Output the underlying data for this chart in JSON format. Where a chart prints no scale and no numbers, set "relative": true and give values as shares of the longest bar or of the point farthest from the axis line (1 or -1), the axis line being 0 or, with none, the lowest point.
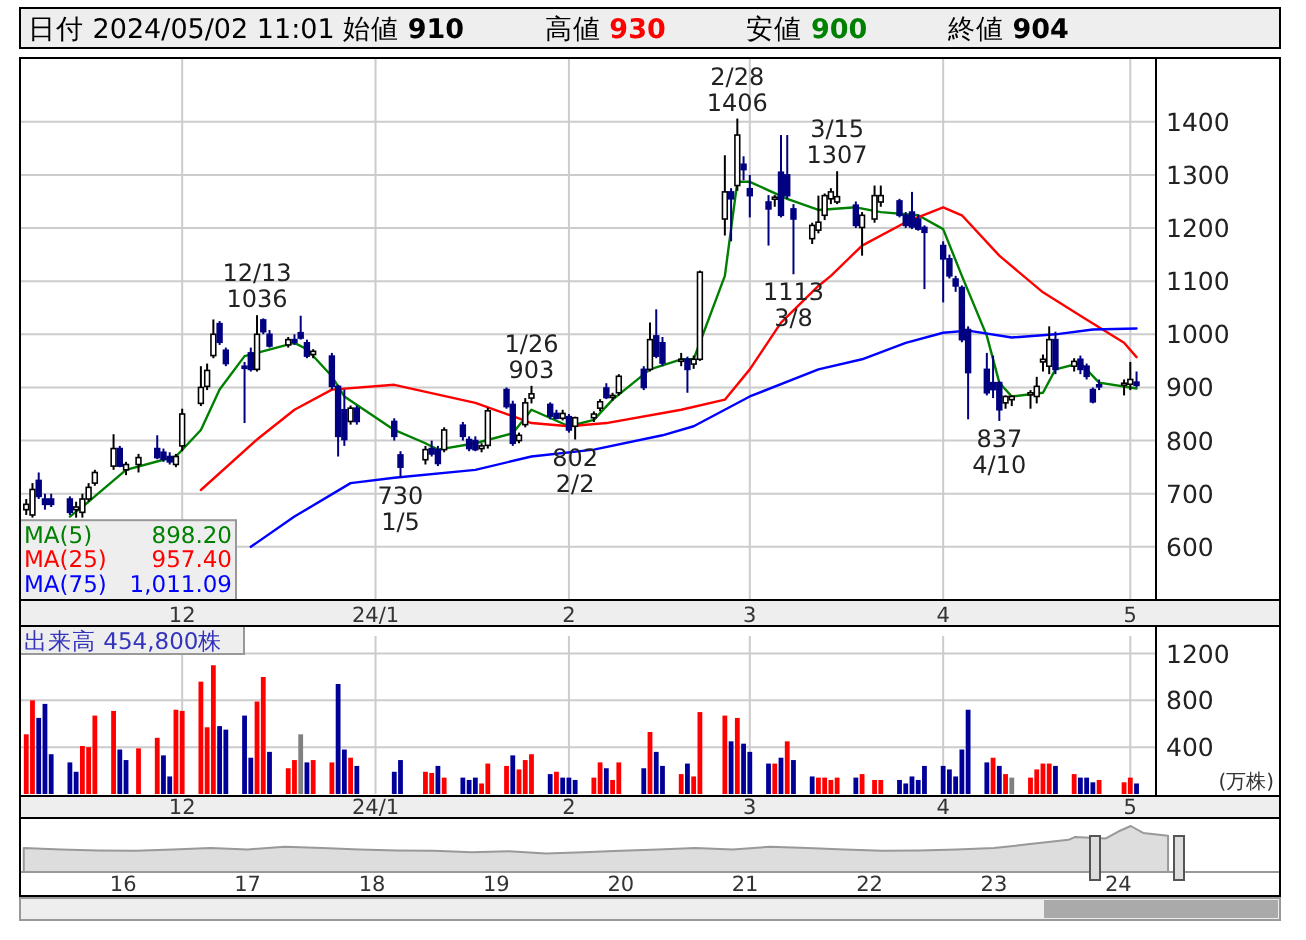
{
  "chart_data": [
    {
      "type": "candlestick",
      "title": "日付 2024/05/02 11:01 始値 **910** 高値 **930** 安値 **900** 終値 **904**",
      "x": [
        "2023-11-06",
        "2023-11-07",
        "2023-11-08",
        "2023-11-09",
        "2023-11-10",
        "2023-11-13",
        "2023-11-14",
        "2023-11-15",
        "2023-11-16",
        "2023-11-17",
        "2023-11-20",
        "2023-11-21",
        "2023-11-22",
        "2023-11-24",
        "2023-11-27",
        "2023-11-28",
        "2023-11-29",
        "2023-11-30",
        "2023-12-01",
        "2023-12-04",
        "2023-12-05",
        "2023-12-06",
        "2023-12-07",
        "2023-12-08",
        "2023-12-11",
        "2023-12-12",
        "2023-12-13",
        "2023-12-14",
        "2023-12-15",
        "2023-12-18",
        "2023-12-19",
        "2023-12-20",
        "2023-12-21",
        "2023-12-22",
        "2023-12-25",
        "2023-12-26",
        "2023-12-27",
        "2023-12-28",
        "2023-12-29",
        "2024-01-04",
        "2024-01-05",
        "2024-01-09",
        "2024-01-10",
        "2024-01-11",
        "2024-01-12",
        "2024-01-15",
        "2024-01-16",
        "2024-01-17",
        "2024-01-18",
        "2024-01-19",
        "2024-01-22",
        "2024-01-23",
        "2024-01-24",
        "2024-01-25",
        "2024-01-26",
        "2024-01-29",
        "2024-01-30",
        "2024-01-31",
        "2024-02-01",
        "2024-02-02",
        "2024-02-05",
        "2024-02-06",
        "2024-02-07",
        "2024-02-08",
        "2024-02-09",
        "2024-02-13",
        "2024-02-14",
        "2024-02-15",
        "2024-02-16",
        "2024-02-19",
        "2024-02-20",
        "2024-02-21",
        "2024-02-22",
        "2024-02-26",
        "2024-02-27",
        "2024-02-28",
        "2024-02-29",
        "2024-03-01",
        "2024-03-04",
        "2024-03-05",
        "2024-03-06",
        "2024-03-07",
        "2024-03-08",
        "2024-03-11",
        "2024-03-12",
        "2024-03-13",
        "2024-03-14",
        "2024-03-15",
        "2024-03-18",
        "2024-03-19",
        "2024-03-21",
        "2024-03-22",
        "2024-03-25",
        "2024-03-26",
        "2024-03-27",
        "2024-03-28",
        "2024-03-29",
        "2024-04-01",
        "2024-04-02",
        "2024-04-03",
        "2024-04-04",
        "2024-04-05",
        "2024-04-08",
        "2024-04-09",
        "2024-04-10",
        "2024-04-11",
        "2024-04-12",
        "2024-04-15",
        "2024-04-16",
        "2024-04-17",
        "2024-04-18",
        "2024-04-19",
        "2024-04-22",
        "2024-04-23",
        "2024-04-24",
        "2024-04-25",
        "2024-04-26",
        "2024-04-30",
        "2024-05-01",
        "2024-05-02"
      ],
      "ohlc": [
        [
          670,
          690,
          660,
          680
        ],
        [
          660,
          720,
          655,
          708
        ],
        [
          725,
          740,
          690,
          695
        ],
        [
          690,
          700,
          670,
          680
        ],
        [
          690,
          700,
          675,
          680
        ],
        [
          690,
          695,
          660,
          665
        ],
        [
          670,
          685,
          655,
          675
        ],
        [
          665,
          700,
          655,
          690
        ],
        [
          690,
          720,
          685,
          712
        ],
        [
          720,
          745,
          715,
          740
        ],
        [
          752,
          812,
          745,
          785
        ],
        [
          785,
          790,
          750,
          752
        ],
        [
          745,
          760,
          735,
          755
        ],
        [
          755,
          775,
          740,
          768
        ],
        [
          785,
          810,
          765,
          768
        ],
        [
          778,
          785,
          760,
          765
        ],
        [
          770,
          778,
          755,
          760
        ],
        [
          755,
          775,
          750,
          770
        ],
        [
          790,
          860,
          780,
          850
        ],
        [
          870,
          940,
          865,
          900
        ],
        [
          902,
          945,
          895,
          932
        ],
        [
          960,
          1028,
          955,
          1000
        ],
        [
          1020,
          1025,
          980,
          985
        ],
        [
          970,
          975,
          940,
          945
        ],
        [
          940,
          948,
          833,
          936
        ],
        [
          965,
          975,
          930,
          934
        ],
        [
          934,
          1036,
          930,
          1000
        ],
        [
          1027,
          1030,
          1000,
          1005
        ],
        [
          1000,
          1008,
          975,
          978
        ],
        [
          980,
          995,
          975,
          990
        ],
        [
          990,
          1000,
          980,
          985
        ],
        [
          1003,
          1035,
          990,
          993
        ],
        [
          984,
          990,
          955,
          959
        ],
        [
          962,
          972,
          955,
          968
        ],
        [
          959,
          965,
          896,
          902
        ],
        [
          902,
          905,
          770,
          808
        ],
        [
          858,
          896,
          790,
          802
        ],
        [
          836,
          866,
          830,
          861
        ],
        [
          861,
          866,
          830,
          836
        ],
        [
          836,
          842,
          800,
          808
        ],
        [
          773,
          780,
          730,
          750
        ],
        [
          764,
          790,
          755,
          783
        ],
        [
          785,
          800,
          770,
          775
        ],
        [
          783,
          790,
          752,
          757
        ],
        [
          783,
          825,
          778,
          820
        ],
        [
          829,
          835,
          800,
          808
        ],
        [
          802,
          808,
          780,
          785
        ],
        [
          800,
          808,
          780,
          783
        ],
        [
          785,
          795,
          778,
          790
        ],
        [
          791,
          862,
          785,
          856
        ],
        [
          896,
          900,
          860,
          864
        ],
        [
          868,
          875,
          790,
          795
        ],
        [
          800,
          815,
          795,
          810
        ],
        [
          830,
          880,
          825,
          871
        ],
        [
          880,
          903,
          870,
          888
        ],
        [
          868,
          872,
          840,
          846
        ],
        [
          851,
          858,
          840,
          842
        ],
        [
          842,
          858,
          838,
          851
        ],
        [
          845,
          850,
          815,
          820
        ],
        [
          827,
          845,
          802,
          843
        ],
        [
          843,
          855,
          835,
          850
        ],
        [
          861,
          878,
          855,
          873
        ],
        [
          899,
          908,
          878,
          881
        ],
        [
          883,
          890,
          875,
          885
        ],
        [
          890,
          925,
          885,
          921
        ],
        [
          934,
          940,
          895,
          900
        ],
        [
          934,
          1022,
          930,
          990
        ],
        [
          997,
          1047,
          955,
          959
        ],
        [
          984,
          995,
          940,
          946
        ],
        [
          950,
          965,
          940,
          953
        ],
        [
          953,
          958,
          890,
          934
        ],
        [
          944,
          960,
          935,
          953
        ],
        [
          953,
          1120,
          950,
          1117
        ],
        [
          1217,
          1337,
          1186,
          1268
        ],
        [
          1268,
          1275,
          1175,
          1255
        ],
        [
          1280,
          1406,
          1270,
          1375
        ],
        [
          1320,
          1335,
          1290,
          1310
        ],
        [
          1274,
          1300,
          1220,
          1261
        ],
        [
          1249,
          1262,
          1167,
          1236
        ],
        [
          1255,
          1262,
          1240,
          1258
        ],
        [
          1305,
          1375,
          1220,
          1224
        ],
        [
          1300,
          1375,
          1255,
          1261
        ],
        [
          1236,
          1245,
          1113,
          1217
        ],
        [
          1180,
          1210,
          1170,
          1205
        ],
        [
          1196,
          1261,
          1190,
          1211
        ],
        [
          1224,
          1265,
          1215,
          1261
        ],
        [
          1255,
          1275,
          1245,
          1268
        ],
        [
          1249,
          1307,
          1245,
          1259
        ],
        [
          1243,
          1250,
          1200,
          1205
        ],
        [
          1201,
          1230,
          1148,
          1224
        ],
        [
          1217,
          1280,
          1210,
          1261
        ],
        [
          1249,
          1280,
          1240,
          1261
        ],
        [
          1251,
          1255,
          1220,
          1224
        ],
        [
          1224,
          1230,
          1200,
          1205
        ],
        [
          1230,
          1268,
          1198,
          1202
        ],
        [
          1217,
          1225,
          1195,
          1198
        ],
        [
          1201,
          1205,
          1085,
          1192
        ],
        [
          1167,
          1175,
          1060,
          1142
        ],
        [
          1142,
          1150,
          1105,
          1110
        ],
        [
          1104,
          1110,
          1080,
          1091
        ],
        [
          1088,
          1092,
          985,
          990
        ],
        [
          1009,
          1015,
          840,
          928
        ],
        [
          934,
          965,
          885,
          890
        ],
        [
          909,
          960,
          880,
          896
        ],
        [
          909,
          912,
          837,
          858
        ],
        [
          871,
          885,
          860,
          883
        ],
        [
          877,
          885,
          865,
          883
        ],
        [
          886,
          895,
          860,
          890
        ],
        [
          883,
          920,
          870,
          902
        ],
        [
          948,
          962,
          930,
          953
        ],
        [
          940,
          1015,
          925,
          990
        ],
        [
          990,
          1005,
          925,
          934
        ],
        [
          940,
          955,
          930,
          949
        ],
        [
          953,
          960,
          925,
          934
        ],
        [
          940,
          945,
          915,
          921
        ],
        [
          896,
          900,
          870,
          873
        ],
        [
          905,
          915,
          895,
          902
        ],
        [
          905,
          915,
          885,
          908
        ],
        [
          906,
          948,
          895,
          915
        ],
        [
          910,
          930,
          900,
          904
        ]
      ],
      "series": [
        {
          "name": "MA(5)",
          "type": "line",
          "color": "#008000",
          "x": [
            "2023-11-13",
            "2023-11-16",
            "2023-11-22",
            "2023-11-28",
            "2023-11-30",
            "2023-12-04",
            "2023-12-07",
            "2023-12-11",
            "2023-12-13",
            "2023-12-19",
            "2023-12-21",
            "2023-12-25",
            "2023-12-27",
            "2024-01-04",
            "2024-01-09",
            "2024-01-11",
            "2024-01-17",
            "2024-01-23",
            "2024-01-26",
            "2024-02-01",
            "2024-02-05",
            "2024-02-08",
            "2024-02-14",
            "2024-02-19",
            "2024-02-21",
            "2024-02-26",
            "2024-02-28",
            "2024-03-01",
            "2024-03-07",
            "2024-03-12",
            "2024-03-18",
            "2024-03-22",
            "2024-03-28",
            "2024-04-01",
            "2024-04-04",
            "2024-04-08",
            "2024-04-10",
            "2024-04-12",
            "2024-04-17",
            "2024-04-19",
            "2024-04-23",
            "2024-04-26",
            "2024-05-02"
          ],
          "values": [
            657,
            685,
            745,
            764,
            770,
            820,
            896,
            959,
            965,
            984,
            972,
            921,
            883,
            820,
            795,
            783,
            795,
            814,
            858,
            827,
            839,
            877,
            934,
            953,
            953,
            1110,
            1287,
            1287,
            1255,
            1234,
            1239,
            1230,
            1224,
            1198,
            1110,
            997,
            909,
            883,
            890,
            934,
            946,
            909,
            898
          ]
        },
        {
          "name": "MA(25)",
          "type": "line",
          "color": "#ff0000",
          "x": [
            "2023-12-04",
            "2023-12-13",
            "2023-12-19",
            "2023-12-25",
            "2024-01-04",
            "2024-01-17",
            "2024-01-23",
            "2024-01-26",
            "2024-02-01",
            "2024-02-07",
            "2024-02-19",
            "2024-02-26",
            "2024-03-01",
            "2024-03-06",
            "2024-03-12",
            "2024-03-14",
            "2024-03-19",
            "2024-03-26",
            "2024-04-01",
            "2024-04-04",
            "2024-04-10",
            "2024-04-17",
            "2024-04-23",
            "2024-04-30",
            "2024-05-02"
          ],
          "values": [
            707,
            802,
            858,
            896,
            905,
            871,
            846,
            833,
            827,
            833,
            858,
            877,
            934,
            1022,
            1091,
            1110,
            1167,
            1211,
            1239,
            1224,
            1148,
            1079,
            1035,
            984,
            957
          ]
        },
        {
          "name": "MA(75)",
          "type": "line",
          "color": "#0000ff",
          "x": [
            "2023-12-12",
            "2023-12-19",
            "2023-12-28",
            "2024-01-04",
            "2024-01-17",
            "2024-01-26",
            "2024-02-05",
            "2024-02-16",
            "2024-02-21",
            "2024-03-01",
            "2024-03-12",
            "2024-03-19",
            "2024-03-26",
            "2024-04-01",
            "2024-04-05",
            "2024-04-12",
            "2024-04-19",
            "2024-04-25",
            "2024-05-02"
          ],
          "values": [
            600,
            657,
            720,
            730,
            745,
            770,
            783,
            810,
            827,
            883,
            934,
            953,
            984,
            1003,
            1007,
            994,
            1000,
            1009,
            1011
          ]
        }
      ],
      "ylim": [
        500,
        1520
      ],
      "xlim": [
        "2023-11-05",
        "2024-05-25"
      ],
      "yticks": [
        600,
        700,
        800,
        900,
        1000,
        1100,
        1200,
        1300,
        1400
      ],
      "xticks": [
        {
          "value": "2023-12-01",
          "label": "12"
        },
        {
          "value": "2024-01-01",
          "label": "24/1"
        },
        {
          "value": "2024-02-01",
          "label": "2"
        },
        {
          "value": "2024-03-01",
          "label": "3"
        },
        {
          "value": "2024-04-01",
          "label": "4"
        },
        {
          "value": "2024-05-01",
          "label": "5"
        }
      ],
      "grid": true,
      "legend": "bottom left",
      "annotations": [
        {
          "text": "12/13 1036",
          "x": "2023-12-13",
          "y": 1036
        },
        {
          "text": "730 1/5",
          "x": "2024-01-05",
          "y": 730
        },
        {
          "text": "1/26 903",
          "x": "2024-01-26",
          "y": 903
        },
        {
          "text": "802 2/2",
          "x": "2024-02-02",
          "y": 802
        },
        {
          "text": "2/28 1406",
          "x": "2024-02-28",
          "y": 1406
        },
        {
          "text": "1113 3/8",
          "x": "2024-03-08",
          "y": 1113
        },
        {
          "text": "3/15 1307",
          "x": "2024-03-15",
          "y": 1307
        },
        {
          "text": "837 4/10",
          "x": "2024-04-10",
          "y": 837
        },
        "898.20",
        "957.40",
        "1,011.09"
      ]
    },
    {
      "type": "bar",
      "title": "出来高 454,800株",
      "ylabel": "(万株)",
      "x": [
        "2023-11-06",
        "2023-11-07",
        "2023-11-08",
        "2023-11-09",
        "2023-11-10",
        "2023-11-13",
        "2023-11-14",
        "2023-11-15",
        "2023-11-16",
        "2023-11-17",
        "2023-11-20",
        "2023-11-21",
        "2023-11-22",
        "2023-11-24",
        "2023-11-27",
        "2023-11-28",
        "2023-11-29",
        "2023-11-30",
        "2023-12-01",
        "2023-12-04",
        "2023-12-05",
        "2023-12-06",
        "2023-12-07",
        "2023-12-08",
        "2023-12-11",
        "2023-12-12",
        "2023-12-13",
        "2023-12-14",
        "2023-12-15",
        "2023-12-18",
        "2023-12-19",
        "2023-12-20",
        "2023-12-21",
        "2023-12-22",
        "2023-12-25",
        "2023-12-26",
        "2023-12-27",
        "2023-12-28",
        "2023-12-29",
        "2024-01-04",
        "2024-01-05",
        "2024-01-09",
        "2024-01-10",
        "2024-01-11",
        "2024-01-12",
        "2024-01-15",
        "2024-01-16",
        "2024-01-17",
        "2024-01-18",
        "2024-01-19",
        "2024-01-22",
        "2024-01-23",
        "2024-01-24",
        "2024-01-25",
        "2024-01-26",
        "2024-01-29",
        "2024-01-30",
        "2024-01-31",
        "2024-02-01",
        "2024-02-02",
        "2024-02-05",
        "2024-02-06",
        "2024-02-07",
        "2024-02-08",
        "2024-02-09",
        "2024-02-13",
        "2024-02-14",
        "2024-02-15",
        "2024-02-16",
        "2024-02-19",
        "2024-02-20",
        "2024-02-21",
        "2024-02-22",
        "2024-02-26",
        "2024-02-27",
        "2024-02-28",
        "2024-02-29",
        "2024-03-01",
        "2024-03-04",
        "2024-03-05",
        "2024-03-06",
        "2024-03-07",
        "2024-03-08",
        "2024-03-11",
        "2024-03-12",
        "2024-03-13",
        "2024-03-14",
        "2024-03-15",
        "2024-03-18",
        "2024-03-19",
        "2024-03-21",
        "2024-03-22",
        "2024-03-25",
        "2024-03-26",
        "2024-03-27",
        "2024-03-28",
        "2024-03-29",
        "2024-04-01",
        "2024-04-02",
        "2024-04-03",
        "2024-04-04",
        "2024-04-05",
        "2024-04-08",
        "2024-04-09",
        "2024-04-10",
        "2024-04-11",
        "2024-04-12",
        "2024-04-15",
        "2024-04-16",
        "2024-04-17",
        "2024-04-18",
        "2024-04-19",
        "2024-04-22",
        "2024-04-23",
        "2024-04-24",
        "2024-04-25",
        "2024-04-26",
        "2024-04-30",
        "2024-05-01",
        "2024-05-02"
      ],
      "values": [
        510,
        800,
        650,
        770,
        340,
        270,
        190,
        410,
        400,
        670,
        710,
        380,
        290,
        390,
        480,
        330,
        150,
        720,
        710,
        960,
        570,
        1100,
        580,
        550,
        670,
        310,
        790,
        1000,
        360,
        220,
        290,
        510,
        270,
        290,
        270,
        940,
        380,
        310,
        240,
        190,
        290,
        190,
        180,
        240,
        140,
        140,
        120,
        140,
        90,
        260,
        240,
        330,
        210,
        290,
        340,
        170,
        190,
        140,
        140,
        120,
        140,
        270,
        220,
        120,
        270,
        220,
        530,
        360,
        240,
        170,
        260,
        150,
        700,
        670,
        450,
        650,
        430,
        360,
        260,
        260,
        310,
        450,
        290,
        150,
        140,
        140,
        120,
        140,
        140,
        170,
        120,
        120,
        120,
        90,
        150,
        120,
        240,
        240,
        210,
        150,
        380,
        720,
        270,
        310,
        240,
        170,
        140,
        140,
        210,
        260,
        260,
        240,
        170,
        140,
        140,
        100,
        120,
        100,
        140,
        90
      ],
      "colors": [
        "#ff0000",
        "#ff0000",
        "#000099",
        "#000099",
        "#000099",
        "#000099",
        "#000099",
        "#ff0000",
        "#ff0000",
        "#ff0000",
        "#ff0000",
        "#000099",
        "#000099",
        "#ff0000",
        "#ff0000",
        "#000099",
        "#000099",
        "#ff0000",
        "#ff0000",
        "#ff0000",
        "#ff0000",
        "#ff0000",
        "#000099",
        "#000099",
        "#000099",
        "#000099",
        "#ff0000",
        "#ff0000",
        "#000099",
        "#ff0000",
        "#ff0000",
        "#808080",
        "#000099",
        "#ff0000",
        "#ff0000",
        "#000099",
        "#000099",
        "#ff0000",
        "#000099",
        "#000099",
        "#000099",
        "#ff0000",
        "#ff0000",
        "#000099",
        "#ff0000",
        "#000099",
        "#000099",
        "#000099",
        "#ff0000",
        "#ff0000",
        "#ff0000",
        "#000099",
        "#ff0000",
        "#ff0000",
        "#ff0000",
        "#000099",
        "#ff0000",
        "#000099",
        "#000099",
        "#000099",
        "#ff0000",
        "#ff0000",
        "#000099",
        "#ff0000",
        "#ff0000",
        "#000099",
        "#ff0000",
        "#000099",
        "#000099",
        "#ff0000",
        "#000099",
        "#ff0000",
        "#ff0000",
        "#ff0000",
        "#000099",
        "#ff0000",
        "#000099",
        "#000099",
        "#000099",
        "#ff0000",
        "#000099",
        "#ff0000",
        "#000099",
        "#000099",
        "#ff0000",
        "#ff0000",
        "#ff0000",
        "#ff0000",
        "#000099",
        "#ff0000",
        "#ff0000",
        "#ff0000",
        "#000099",
        "#000099",
        "#000099",
        "#000099",
        "#000099",
        "#000099",
        "#000099",
        "#000099",
        "#000099",
        "#000099",
        "#000099",
        "#ff0000",
        "#000099",
        "#ff0000",
        "#808080",
        "#ff0000",
        "#ff0000",
        "#ff0000",
        "#ff0000",
        "#000099",
        "#ff0000",
        "#000099",
        "#000099",
        "#000099",
        "#ff0000",
        "#ff0000",
        "#ff0000",
        "#000099"
      ],
      "ylim": [
        0,
        1350
      ],
      "yticks": [
        400,
        800,
        1200
      ],
      "xlim": [
        "2023-11-05",
        "2024-05-25"
      ],
      "xticks": [
        {
          "value": "2023-12-01",
          "label": "12"
        },
        {
          "value": "2024-01-01",
          "label": "24/1"
        },
        {
          "value": "2024-02-01",
          "label": "2"
        },
        {
          "value": "2024-03-01",
          "label": "3"
        },
        {
          "value": "2024-04-01",
          "label": "4"
        },
        {
          "value": "2024-05-01",
          "label": "5"
        }
      ],
      "grid": true
    },
    {
      "type": "area",
      "relative": true,
      "tick_labels": "x",
      "color": "#999999",
      "x": [
        15.2,
        15.5,
        15.8,
        16.1,
        16.4,
        16.7,
        17.0,
        17.3,
        17.6,
        17.9,
        18.2,
        18.5,
        18.8,
        19.1,
        19.4,
        19.7,
        20.0,
        20.3,
        20.6,
        20.9,
        21.2,
        21.5,
        21.8,
        22.1,
        22.4,
        22.7,
        23.0,
        23.2,
        23.4,
        23.6,
        23.65,
        23.9,
        24.0,
        24.1,
        24.2,
        24.4
      ],
      "values": [
        0.52,
        0.49,
        0.47,
        0.46,
        0.49,
        0.52,
        0.49,
        0.55,
        0.52,
        0.49,
        0.47,
        0.46,
        0.43,
        0.45,
        0.4,
        0.43,
        0.46,
        0.49,
        0.52,
        0.49,
        0.55,
        0.52,
        0.49,
        0.46,
        0.47,
        0.49,
        0.52,
        0.58,
        0.64,
        0.7,
        0.76,
        0.73,
        0.88,
        1,
        0.85,
        0.79
      ],
      "xlim": [
        15.17,
        25.3
      ],
      "xticks": [
        16,
        17,
        18,
        19,
        20,
        21,
        22,
        23,
        24
      ]
    }
  ]
}
